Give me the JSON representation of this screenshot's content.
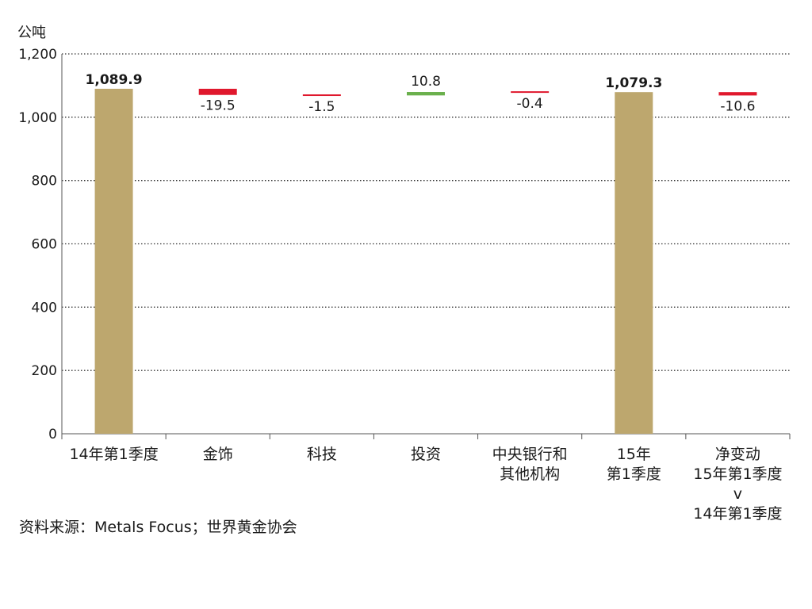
{
  "chart_data": {
    "type": "bar",
    "subtype": "waterfall",
    "ylabel": "公吨",
    "ylim": [
      0,
      1200
    ],
    "yticks": [
      "0",
      "200",
      "400",
      "600",
      "800",
      "1,000",
      "1,200"
    ],
    "ytick_values": [
      0,
      200,
      400,
      600,
      800,
      1000,
      1200
    ],
    "grid": "dotted horizontal",
    "categories": [
      [
        "14年第1季度"
      ],
      [
        "金饰"
      ],
      [
        "科技"
      ],
      [
        "投资"
      ],
      [
        "中央银行和",
        "其他机构"
      ],
      [
        "15年",
        "第1季度"
      ],
      [
        "净变动",
        "15年第1季度",
        "v",
        "14年第1季度"
      ]
    ],
    "bars": [
      {
        "kind": "total",
        "value": 1089.9,
        "label": "1,089.9",
        "color": "#bda76e"
      },
      {
        "kind": "change",
        "value": -19.5,
        "label": "-19.5",
        "color": "#e0182d"
      },
      {
        "kind": "change",
        "value": -1.5,
        "label": "-1.5",
        "color": "#e0182d"
      },
      {
        "kind": "change",
        "value": 10.8,
        "label": "10.8",
        "color": "#6ab04c"
      },
      {
        "kind": "change",
        "value": -0.4,
        "label": "-0.4",
        "color": "#e0182d"
      },
      {
        "kind": "total",
        "value": 1079.3,
        "label": "1,079.3",
        "color": "#bda76e"
      },
      {
        "kind": "change",
        "value": -10.6,
        "label": "-10.6",
        "color": "#e0182d"
      }
    ]
  },
  "source_note": "资料来源：Metals Focus；世界黄金协会"
}
